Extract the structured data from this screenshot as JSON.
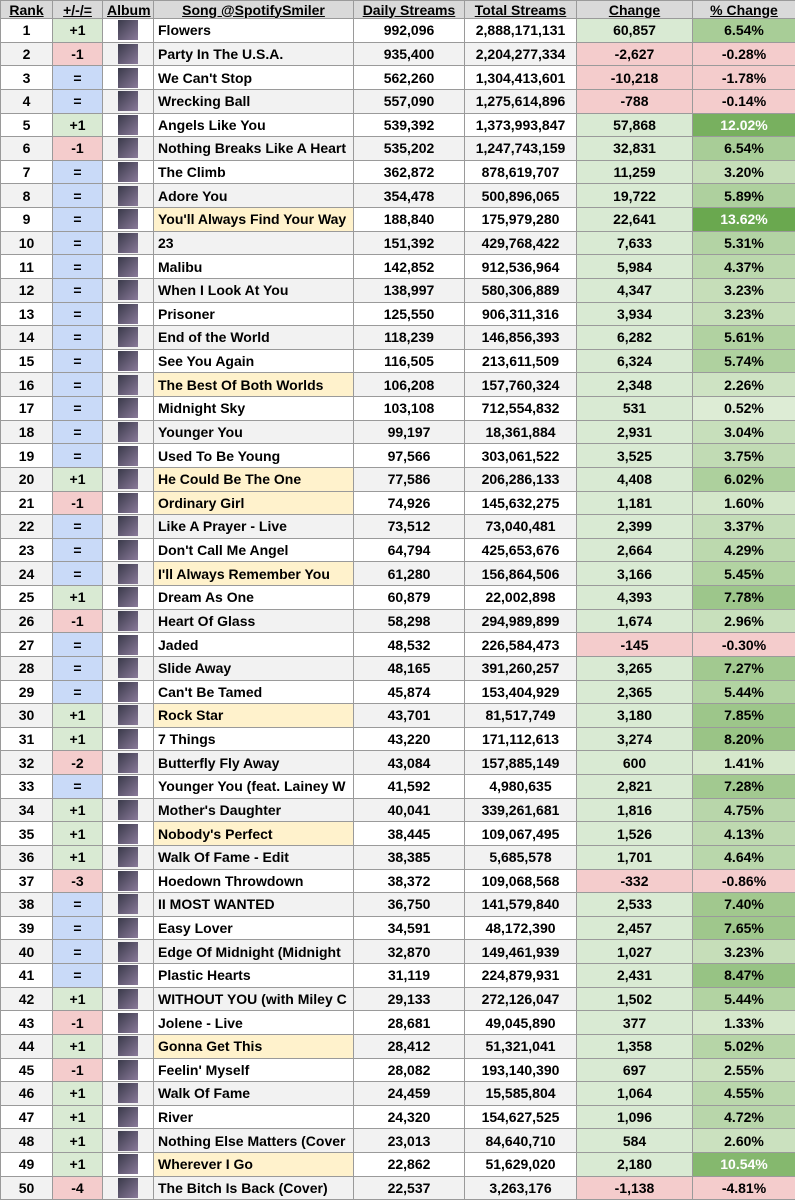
{
  "header": [
    "Rank",
    "+/-/=",
    "Album",
    "Song @SpotifySmiler",
    "Daily Streams",
    "Total Streams",
    "Change",
    "% Change"
  ],
  "rows": [
    {
      "rank": 1,
      "move": "+1",
      "song": "Flowers",
      "daily": "992,096",
      "total": "2,888,171,131",
      "change": "60,857",
      "pct": "6.54%"
    },
    {
      "rank": 2,
      "move": "-1",
      "song": "Party In The U.S.A.",
      "daily": "935,400",
      "total": "2,204,277,334",
      "change": "-2,627",
      "pct": "-0.28%"
    },
    {
      "rank": 3,
      "move": "=",
      "song": "We Can't Stop",
      "daily": "562,260",
      "total": "1,304,413,601",
      "change": "-10,218",
      "pct": "-1.78%"
    },
    {
      "rank": 4,
      "move": "=",
      "song": "Wrecking Ball",
      "daily": "557,090",
      "total": "1,275,614,896",
      "change": "-788",
      "pct": "-0.14%"
    },
    {
      "rank": 5,
      "move": "+1",
      "song": "Angels Like You",
      "daily": "539,392",
      "total": "1,373,993,847",
      "change": "57,868",
      "pct": "12.02%"
    },
    {
      "rank": 6,
      "move": "-1",
      "song": "Nothing Breaks Like A Heart",
      "daily": "535,202",
      "total": "1,247,743,159",
      "change": "32,831",
      "pct": "6.54%"
    },
    {
      "rank": 7,
      "move": "=",
      "song": "The Climb",
      "daily": "362,872",
      "total": "878,619,707",
      "change": "11,259",
      "pct": "3.20%"
    },
    {
      "rank": 8,
      "move": "=",
      "song": "Adore You",
      "daily": "354,478",
      "total": "500,896,065",
      "change": "19,722",
      "pct": "5.89%"
    },
    {
      "rank": 9,
      "move": "=",
      "song": "You'll Always Find Your Way",
      "daily": "188,840",
      "total": "175,979,280",
      "change": "22,641",
      "pct": "13.62%",
      "highlight": true
    },
    {
      "rank": 10,
      "move": "=",
      "song": "23",
      "daily": "151,392",
      "total": "429,768,422",
      "change": "7,633",
      "pct": "5.31%"
    },
    {
      "rank": 11,
      "move": "=",
      "song": "Malibu",
      "daily": "142,852",
      "total": "912,536,964",
      "change": "5,984",
      "pct": "4.37%"
    },
    {
      "rank": 12,
      "move": "=",
      "song": "When I Look At You",
      "daily": "138,997",
      "total": "580,306,889",
      "change": "4,347",
      "pct": "3.23%"
    },
    {
      "rank": 13,
      "move": "=",
      "song": "Prisoner",
      "daily": "125,550",
      "total": "906,311,316",
      "change": "3,934",
      "pct": "3.23%"
    },
    {
      "rank": 14,
      "move": "=",
      "song": "End of the World",
      "daily": "118,239",
      "total": "146,856,393",
      "change": "6,282",
      "pct": "5.61%"
    },
    {
      "rank": 15,
      "move": "=",
      "song": "See You Again",
      "daily": "116,505",
      "total": "213,611,509",
      "change": "6,324",
      "pct": "5.74%"
    },
    {
      "rank": 16,
      "move": "=",
      "song": "The Best Of Both Worlds",
      "daily": "106,208",
      "total": "157,760,324",
      "change": "2,348",
      "pct": "2.26%",
      "highlight": true
    },
    {
      "rank": 17,
      "move": "=",
      "song": "Midnight Sky",
      "daily": "103,108",
      "total": "712,554,832",
      "change": "531",
      "pct": "0.52%"
    },
    {
      "rank": 18,
      "move": "=",
      "song": "Younger You",
      "daily": "99,197",
      "total": "18,361,884",
      "change": "2,931",
      "pct": "3.04%"
    },
    {
      "rank": 19,
      "move": "=",
      "song": "Used To Be Young",
      "daily": "97,566",
      "total": "303,061,522",
      "change": "3,525",
      "pct": "3.75%"
    },
    {
      "rank": 20,
      "move": "+1",
      "song": "He Could Be The One",
      "daily": "77,586",
      "total": "206,286,133",
      "change": "4,408",
      "pct": "6.02%",
      "highlight": true
    },
    {
      "rank": 21,
      "move": "-1",
      "song": "Ordinary Girl",
      "daily": "74,926",
      "total": "145,632,275",
      "change": "1,181",
      "pct": "1.60%",
      "highlight": true
    },
    {
      "rank": 22,
      "move": "=",
      "song": "Like A Prayer - Live",
      "daily": "73,512",
      "total": "73,040,481",
      "change": "2,399",
      "pct": "3.37%"
    },
    {
      "rank": 23,
      "move": "=",
      "song": "Don't Call Me Angel",
      "daily": "64,794",
      "total": "425,653,676",
      "change": "2,664",
      "pct": "4.29%"
    },
    {
      "rank": 24,
      "move": "=",
      "song": "I'll Always Remember You",
      "daily": "61,280",
      "total": "156,864,506",
      "change": "3,166",
      "pct": "5.45%",
      "highlight": true
    },
    {
      "rank": 25,
      "move": "+1",
      "song": "Dream As One",
      "daily": "60,879",
      "total": "22,002,898",
      "change": "4,393",
      "pct": "7.78%"
    },
    {
      "rank": 26,
      "move": "-1",
      "song": "Heart Of Glass",
      "daily": "58,298",
      "total": "294,989,899",
      "change": "1,674",
      "pct": "2.96%"
    },
    {
      "rank": 27,
      "move": "=",
      "song": "Jaded",
      "daily": "48,532",
      "total": "226,584,473",
      "change": "-145",
      "pct": "-0.30%"
    },
    {
      "rank": 28,
      "move": "=",
      "song": "Slide Away",
      "daily": "48,165",
      "total": "391,260,257",
      "change": "3,265",
      "pct": "7.27%"
    },
    {
      "rank": 29,
      "move": "=",
      "song": "Can't Be Tamed",
      "daily": "45,874",
      "total": "153,404,929",
      "change": "2,365",
      "pct": "5.44%"
    },
    {
      "rank": 30,
      "move": "+1",
      "song": "Rock Star",
      "daily": "43,701",
      "total": "81,517,749",
      "change": "3,180",
      "pct": "7.85%",
      "highlight": true
    },
    {
      "rank": 31,
      "move": "+1",
      "song": "7 Things",
      "daily": "43,220",
      "total": "171,112,613",
      "change": "3,274",
      "pct": "8.20%"
    },
    {
      "rank": 32,
      "move": "-2",
      "song": "Butterfly Fly Away",
      "daily": "43,084",
      "total": "157,885,149",
      "change": "600",
      "pct": "1.41%"
    },
    {
      "rank": 33,
      "move": "=",
      "song": "Younger You (feat. Lainey W",
      "daily": "41,592",
      "total": "4,980,635",
      "change": "2,821",
      "pct": "7.28%"
    },
    {
      "rank": 34,
      "move": "+1",
      "song": "Mother's Daughter",
      "daily": "40,041",
      "total": "339,261,681",
      "change": "1,816",
      "pct": "4.75%"
    },
    {
      "rank": 35,
      "move": "+1",
      "song": "Nobody's Perfect",
      "daily": "38,445",
      "total": "109,067,495",
      "change": "1,526",
      "pct": "4.13%",
      "highlight": true
    },
    {
      "rank": 36,
      "move": "+1",
      "song": "Walk Of Fame - Edit",
      "daily": "38,385",
      "total": "5,685,578",
      "change": "1,701",
      "pct": "4.64%"
    },
    {
      "rank": 37,
      "move": "-3",
      "song": "Hoedown Throwdown",
      "daily": "38,372",
      "total": "109,068,568",
      "change": "-332",
      "pct": "-0.86%"
    },
    {
      "rank": 38,
      "move": "=",
      "song": "II MOST WANTED",
      "daily": "36,750",
      "total": "141,579,840",
      "change": "2,533",
      "pct": "7.40%"
    },
    {
      "rank": 39,
      "move": "=",
      "song": "Easy Lover",
      "daily": "34,591",
      "total": "48,172,390",
      "change": "2,457",
      "pct": "7.65%"
    },
    {
      "rank": 40,
      "move": "=",
      "song": "Edge Of Midnight (Midnight",
      "daily": "32,870",
      "total": "149,461,939",
      "change": "1,027",
      "pct": "3.23%"
    },
    {
      "rank": 41,
      "move": "=",
      "song": "Plastic Hearts",
      "daily": "31,119",
      "total": "224,879,931",
      "change": "2,431",
      "pct": "8.47%"
    },
    {
      "rank": 42,
      "move": "+1",
      "song": "WITHOUT YOU (with Miley C",
      "daily": "29,133",
      "total": "272,126,047",
      "change": "1,502",
      "pct": "5.44%"
    },
    {
      "rank": 43,
      "move": "-1",
      "song": "Jolene - Live",
      "daily": "28,681",
      "total": "49,045,890",
      "change": "377",
      "pct": "1.33%"
    },
    {
      "rank": 44,
      "move": "+1",
      "song": "Gonna Get This",
      "daily": "28,412",
      "total": "51,321,041",
      "change": "1,358",
      "pct": "5.02%",
      "highlight": true
    },
    {
      "rank": 45,
      "move": "-1",
      "song": "Feelin' Myself",
      "daily": "28,082",
      "total": "193,140,390",
      "change": "697",
      "pct": "2.55%"
    },
    {
      "rank": 46,
      "move": "+1",
      "song": "Walk Of Fame",
      "daily": "24,459",
      "total": "15,585,804",
      "change": "1,064",
      "pct": "4.55%"
    },
    {
      "rank": 47,
      "move": "+1",
      "song": "River",
      "daily": "24,320",
      "total": "154,627,525",
      "change": "1,096",
      "pct": "4.72%"
    },
    {
      "rank": 48,
      "move": "+1",
      "song": "Nothing Else Matters (Cover",
      "daily": "23,013",
      "total": "84,640,710",
      "change": "584",
      "pct": "2.60%"
    },
    {
      "rank": 49,
      "move": "+1",
      "song": "Wherever I Go",
      "daily": "22,862",
      "total": "51,629,020",
      "change": "2,180",
      "pct": "10.54%",
      "highlight": true
    },
    {
      "rank": 50,
      "move": "-4",
      "song": "The Bitch Is Back (Cover)",
      "daily": "22,537",
      "total": "3,263,176",
      "change": "-1,138",
      "pct": "-4.81%"
    }
  ]
}
